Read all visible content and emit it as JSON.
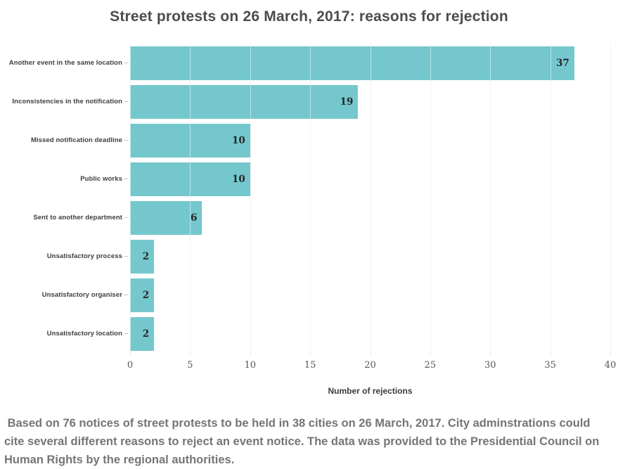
{
  "chart_data": {
    "type": "bar",
    "orientation": "horizontal",
    "title": "Street protests on 26 March, 2017: reasons for rejection",
    "categories": [
      "Another event in the same location",
      "Inconsistencies in the notification",
      "Missed notification deadline",
      "Public works",
      "Sent to another department",
      "Unsatisfactory process",
      "Unsatisfactory organiser",
      "Unsatisfactory location"
    ],
    "values": [
      37,
      19,
      10,
      10,
      6,
      2,
      2,
      2
    ],
    "xlabel": "Number of rejections",
    "ylabel": "",
    "xlim": [
      0,
      40
    ],
    "xticks": [
      0,
      5,
      10,
      15,
      20,
      25,
      30,
      35,
      40
    ],
    "grid": true,
    "legend": "none",
    "bar_color": "#74c8cd",
    "value_label_color": "#262626",
    "gridline_color": "#e4e4e4"
  },
  "footer": {
    "text": " Based on 76 notices of street protests to be held in 38 cities on 26 March, 2017. City adminstrations could cite several different reasons to reject an event notice. The data was provided to the Presidential Council on Human Rights by the regional authorities."
  }
}
